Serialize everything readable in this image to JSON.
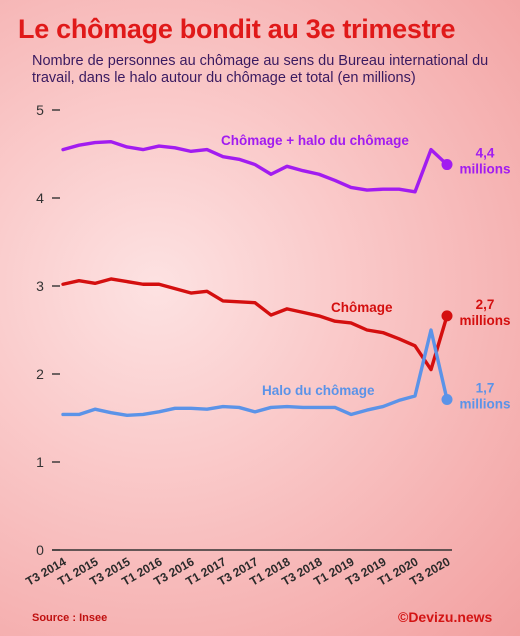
{
  "header": {
    "title": "Le chômage bondit au 3e trimestre",
    "subtitle": "Nombre de personnes au chômage au sens du Bureau international du travail, dans le halo autour du chômage et total (en millions)"
  },
  "footer": {
    "source": "Source : Insee",
    "credit": "©Devizu.news"
  },
  "colors": {
    "total": "#a21cf0",
    "chomage": "#d40f0f",
    "halo": "#5b93e8",
    "axis": "#333333"
  },
  "chart_data": {
    "type": "line",
    "title": "Le chômage bondit au 3e trimestre",
    "ylim": [
      0,
      5
    ],
    "yticks": [
      0,
      1,
      2,
      3,
      4,
      5
    ],
    "grid": false,
    "categories": [
      "T3 2014",
      "T4 2014",
      "T1 2015",
      "T2 2015",
      "T3 2015",
      "T4 2015",
      "T1 2016",
      "T2 2016",
      "T3 2016",
      "T4 2016",
      "T1 2017",
      "T2 2017",
      "T3 2017",
      "T4 2017",
      "T1 2018",
      "T2 2018",
      "T3 2018",
      "T4 2018",
      "T1 2019",
      "T2 2019",
      "T3 2019",
      "T4 2019",
      "T1 2020",
      "T2 2020",
      "T3 2020"
    ],
    "xtick_labels": [
      "T3 2014",
      "T1 2015",
      "T3 2015",
      "T1 2016",
      "T3 2016",
      "T1 2017",
      "T3 2017",
      "T1 2018",
      "T3 2018",
      "T1 2019",
      "T3 2019",
      "T1 2020",
      "T3 2020"
    ],
    "series": [
      {
        "key": "total",
        "name": "Chômage + halo du chômage",
        "end_label": [
          "4,4",
          "millions"
        ],
        "values": [
          4.55,
          4.6,
          4.63,
          4.64,
          4.58,
          4.55,
          4.59,
          4.57,
          4.53,
          4.55,
          4.47,
          4.44,
          4.38,
          4.27,
          4.36,
          4.31,
          4.27,
          4.2,
          4.12,
          4.09,
          4.1,
          4.1,
          4.07,
          4.55,
          4.38
        ]
      },
      {
        "key": "chomage",
        "name": "Chômage",
        "end_label": [
          "2,7",
          "millions"
        ],
        "values": [
          3.02,
          3.06,
          3.03,
          3.08,
          3.05,
          3.02,
          3.02,
          2.97,
          2.92,
          2.94,
          2.83,
          2.82,
          2.81,
          2.67,
          2.74,
          2.7,
          2.66,
          2.6,
          2.58,
          2.5,
          2.47,
          2.4,
          2.32,
          2.05,
          2.66
        ]
      },
      {
        "key": "halo",
        "name": "Halo du chômage",
        "end_label": [
          "1,7",
          "millions"
        ],
        "values": [
          1.54,
          1.54,
          1.6,
          1.56,
          1.53,
          1.54,
          1.57,
          1.61,
          1.61,
          1.6,
          1.63,
          1.62,
          1.57,
          1.62,
          1.63,
          1.62,
          1.62,
          1.62,
          1.54,
          1.59,
          1.63,
          1.7,
          1.75,
          2.5,
          1.71
        ]
      }
    ]
  }
}
